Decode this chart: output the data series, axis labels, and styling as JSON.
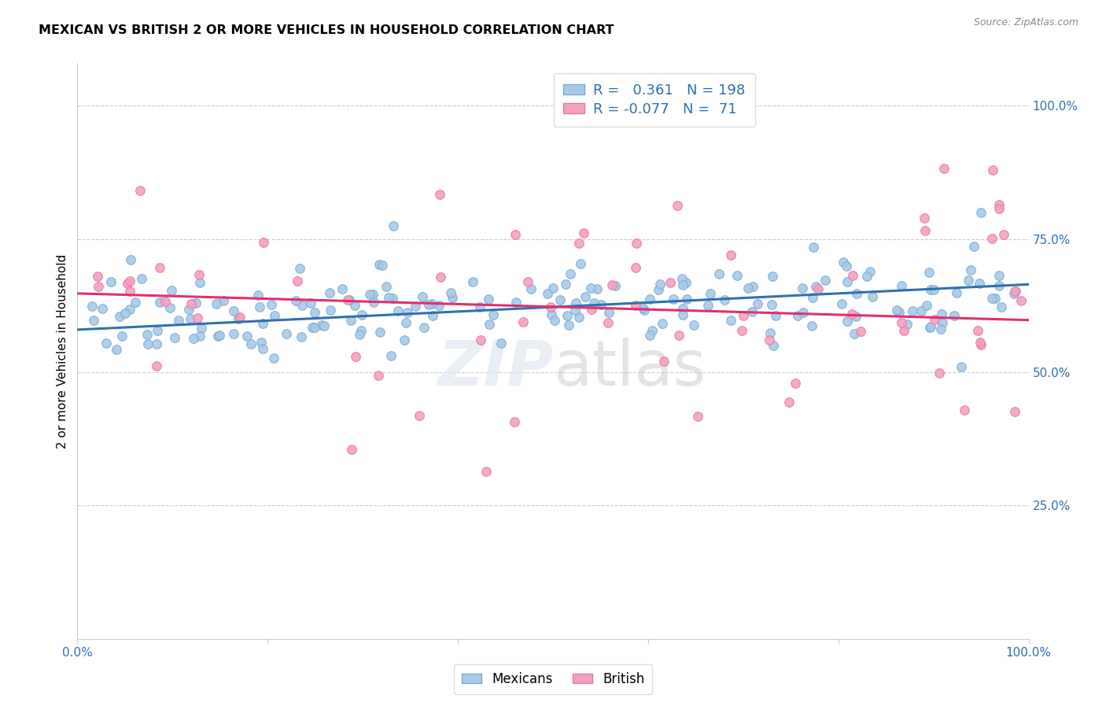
{
  "title": "MEXICAN VS BRITISH 2 OR MORE VEHICLES IN HOUSEHOLD CORRELATION CHART",
  "source": "Source: ZipAtlas.com",
  "ylabel": "2 or more Vehicles in Household",
  "xlim": [
    0.0,
    1.0
  ],
  "ylim": [
    0.0,
    1.08
  ],
  "blue_R": 0.361,
  "blue_N": 198,
  "pink_R": -0.077,
  "pink_N": 71,
  "blue_color": "#a8c8e8",
  "pink_color": "#f4a0c0",
  "blue_line_color": "#3070b0",
  "pink_line_color": "#e03070",
  "blue_trend_start_y": 0.58,
  "blue_trend_end_y": 0.665,
  "pink_trend_start_y": 0.648,
  "pink_trend_end_y": 0.598,
  "legend_label_blue": "Mexicans",
  "legend_label_pink": "British",
  "ytick_vals": [
    0.25,
    0.5,
    0.75,
    1.0
  ],
  "ytick_labels": [
    "25.0%",
    "50.0%",
    "75.0%",
    "100.0%"
  ]
}
